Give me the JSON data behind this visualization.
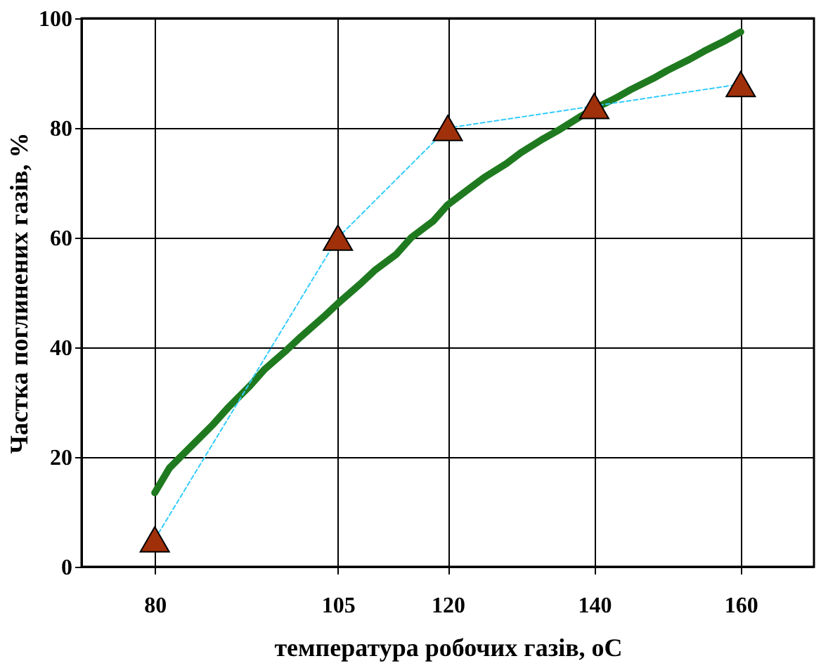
{
  "chart_data": {
    "type": "line",
    "xlabel": "температура робочих газів, оС",
    "ylabel": "Частка поглинених газів, %",
    "xlim": [
      70,
      170
    ],
    "xticks": [
      80,
      105,
      120,
      140,
      160
    ],
    "ylim": [
      0,
      100
    ],
    "yticks": [
      0,
      20,
      40,
      60,
      80,
      100
    ],
    "grid": true,
    "series": [
      {
        "color": "#1f7a1f",
        "marker": "none",
        "line_style": "solid",
        "x": [
          80,
          82,
          85,
          88,
          90,
          93,
          95,
          98,
          100,
          103,
          105,
          108,
          110,
          113,
          115,
          118,
          120,
          123,
          125,
          128,
          130,
          133,
          135,
          138,
          140,
          143,
          145,
          148,
          150,
          153,
          155,
          158,
          160
        ],
        "values": [
          13.5,
          18,
          22,
          26,
          29,
          33,
          36,
          39.5,
          42,
          45.5,
          48,
          51.5,
          54,
          57,
          60,
          63,
          66,
          69,
          71,
          73.5,
          75.5,
          78,
          79.5,
          82,
          83.5,
          85.5,
          87,
          89,
          90.5,
          92.5,
          94,
          96,
          97.5
        ]
      },
      {
        "color": "#33ccff",
        "marker": "triangle",
        "line_style": "dashed",
        "x": [
          80,
          105,
          120,
          140,
          160
        ],
        "values": [
          5,
          60,
          80,
          84,
          88
        ]
      }
    ]
  }
}
